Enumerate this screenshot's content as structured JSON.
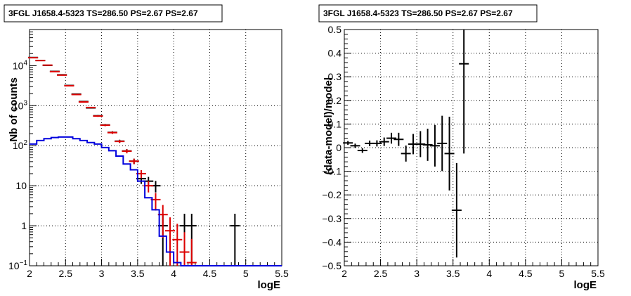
{
  "chart_data": [
    {
      "type": "scatter",
      "title": "3FGL J1658.4-5323 TS=286.50 PS=2.67 PS=2.67",
      "xlabel": "logE",
      "ylabel": "Nb of counts",
      "xlim": [
        2,
        5.5
      ],
      "ylim": [
        0.1,
        80000
      ],
      "yscale": "log",
      "grid": true,
      "x_ticks": [
        "2",
        "2.5",
        "3",
        "3.5",
        "4",
        "4.5",
        "5",
        "5.5"
      ],
      "y_ticks": [
        {
          "value": 0.1,
          "label": "10⁻¹",
          "base": "10",
          "exp": "−1"
        },
        {
          "value": 1,
          "label": "1"
        },
        {
          "value": 10,
          "label": "10"
        },
        {
          "value": 100,
          "label": "10²",
          "base": "10",
          "exp": "2"
        },
        {
          "value": 1000,
          "label": "10³",
          "base": "10",
          "exp": "3"
        },
        {
          "value": 10000,
          "label": "10⁴",
          "base": "10",
          "exp": "4"
        }
      ],
      "series": [
        {
          "role": "data",
          "color": "#000000",
          "points": [
            {
              "x": 2.05,
              "y": 16000,
              "e": 130
            },
            {
              "x": 2.15,
              "y": 13500,
              "e": 120
            },
            {
              "x": 2.25,
              "y": 10200,
              "e": 100
            },
            {
              "x": 2.35,
              "y": 7200,
              "e": 85
            },
            {
              "x": 2.45,
              "y": 5900,
              "e": 77
            },
            {
              "x": 2.55,
              "y": 3200,
              "e": 57
            },
            {
              "x": 2.65,
              "y": 1950,
              "e": 44
            },
            {
              "x": 2.75,
              "y": 1270,
              "e": 36
            },
            {
              "x": 2.85,
              "y": 880,
              "e": 30
            },
            {
              "x": 2.95,
              "y": 560,
              "e": 24
            },
            {
              "x": 3.05,
              "y": 330,
              "e": 18
            },
            {
              "x": 3.15,
              "y": 215,
              "e": 15
            },
            {
              "x": 3.25,
              "y": 130,
              "e": 11
            },
            {
              "x": 3.35,
              "y": 74,
              "e": 8.6
            },
            {
              "x": 3.45,
              "y": 41,
              "e": 6.4
            },
            {
              "x": 3.55,
              "y": 15,
              "e": 3.9
            },
            {
              "x": 3.65,
              "y": 13,
              "e": 3.6
            },
            {
              "x": 3.75,
              "y": 10,
              "e": 3.2
            },
            {
              "x": 3.85,
              "y": 1,
              "e": 1
            },
            {
              "x": 4.15,
              "y": 1,
              "e": 1
            },
            {
              "x": 4.25,
              "y": 1,
              "e": 1
            },
            {
              "x": 4.85,
              "y": 1,
              "e": 1
            }
          ]
        },
        {
          "role": "model",
          "color": "#dd0000",
          "points": [
            {
              "x": 2.05,
              "y": 15800,
              "e": 126
            },
            {
              "x": 2.15,
              "y": 13400,
              "e": 116
            },
            {
              "x": 2.25,
              "y": 10300,
              "e": 101
            },
            {
              "x": 2.35,
              "y": 7100,
              "e": 84
            },
            {
              "x": 2.45,
              "y": 5800,
              "e": 76
            },
            {
              "x": 2.55,
              "y": 3150,
              "e": 56
            },
            {
              "x": 2.65,
              "y": 1900,
              "e": 44
            },
            {
              "x": 2.75,
              "y": 1240,
              "e": 35
            },
            {
              "x": 2.85,
              "y": 900,
              "e": 30
            },
            {
              "x": 2.95,
              "y": 550,
              "e": 23
            },
            {
              "x": 3.05,
              "y": 325,
              "e": 18
            },
            {
              "x": 3.15,
              "y": 212,
              "e": 15
            },
            {
              "x": 3.25,
              "y": 128,
              "e": 11
            },
            {
              "x": 3.35,
              "y": 73,
              "e": 8.5
            },
            {
              "x": 3.45,
              "y": 41,
              "e": 6.4
            },
            {
              "x": 3.55,
              "y": 20,
              "e": 4.5
            },
            {
              "x": 3.65,
              "y": 10,
              "e": 3.2
            },
            {
              "x": 3.75,
              "y": 4.5,
              "e": 2.1
            },
            {
              "x": 3.85,
              "y": 1.9,
              "e": 1.4
            },
            {
              "x": 3.95,
              "y": 0.75,
              "e": 0.87
            },
            {
              "x": 4.05,
              "y": 0.45,
              "e": 0.67
            },
            {
              "x": 4.15,
              "y": 0.22,
              "e": 0.47
            },
            {
              "x": 4.25,
              "y": 0.12,
              "e": 0.35
            }
          ]
        },
        {
          "role": "component",
          "color": "#0000dd",
          "style": "step",
          "bins": [
            {
              "x0": 2.0,
              "x1": 2.1,
              "y": 110
            },
            {
              "x0": 2.1,
              "x1": 2.2,
              "y": 135
            },
            {
              "x0": 2.2,
              "x1": 2.3,
              "y": 150
            },
            {
              "x0": 2.3,
              "x1": 2.4,
              "y": 160
            },
            {
              "x0": 2.4,
              "x1": 2.5,
              "y": 165
            },
            {
              "x0": 2.5,
              "x1": 2.6,
              "y": 165
            },
            {
              "x0": 2.6,
              "x1": 2.7,
              "y": 150
            },
            {
              "x0": 2.7,
              "x1": 2.8,
              "y": 135
            },
            {
              "x0": 2.8,
              "x1": 2.9,
              "y": 120
            },
            {
              "x0": 2.9,
              "x1": 3.0,
              "y": 110
            },
            {
              "x0": 3.0,
              "x1": 3.1,
              "y": 90
            },
            {
              "x0": 3.1,
              "x1": 3.2,
              "y": 75
            },
            {
              "x0": 3.2,
              "x1": 3.3,
              "y": 55
            },
            {
              "x0": 3.3,
              "x1": 3.4,
              "y": 35
            },
            {
              "x0": 3.4,
              "x1": 3.5,
              "y": 25
            },
            {
              "x0": 3.5,
              "x1": 3.6,
              "y": 13
            },
            {
              "x0": 3.6,
              "x1": 3.7,
              "y": 5
            },
            {
              "x0": 3.7,
              "x1": 3.8,
              "y": 2.5
            },
            {
              "x0": 3.8,
              "x1": 3.9,
              "y": 0.55
            },
            {
              "x0": 3.9,
              "x1": 4.0,
              "y": 0.22
            },
            {
              "x0": 4.0,
              "x1": 4.1,
              "y": 0.12
            },
            {
              "x0": 4.1,
              "x1": 5.5,
              "y": 0.1
            }
          ]
        }
      ]
    },
    {
      "type": "scatter",
      "title": "3FGL J1658.4-5323 TS=286.50 PS=2.67 PS=2.67",
      "xlabel": "logE",
      "ylabel": "(data-model)/model",
      "xlim": [
        2,
        5.5
      ],
      "ylim": [
        -0.5,
        0.5
      ],
      "grid": true,
      "x_ticks": [
        "2",
        "2.5",
        "3",
        "3.5",
        "4",
        "4.5",
        "5",
        "5.5"
      ],
      "y_ticks": [
        "−0.5",
        "−0.4",
        "−0.3",
        "−0.2",
        "−0.1",
        "0",
        "0.1",
        "0.2",
        "0.3",
        "0.4",
        "0.5"
      ],
      "y_tick_values": [
        -0.5,
        -0.4,
        -0.3,
        -0.2,
        -0.1,
        0,
        0.1,
        0.2,
        0.3,
        0.4,
        0.5
      ],
      "series": [
        {
          "role": "residual",
          "color": "#000000",
          "points": [
            {
              "x": 2.05,
              "y": 0.02,
              "e": 0.008
            },
            {
              "x": 2.15,
              "y": 0.008,
              "e": 0.009
            },
            {
              "x": 2.25,
              "y": -0.012,
              "e": 0.01
            },
            {
              "x": 2.35,
              "y": 0.018,
              "e": 0.012
            },
            {
              "x": 2.45,
              "y": 0.018,
              "e": 0.013
            },
            {
              "x": 2.55,
              "y": 0.025,
              "e": 0.018
            },
            {
              "x": 2.65,
              "y": 0.04,
              "e": 0.023
            },
            {
              "x": 2.75,
              "y": 0.035,
              "e": 0.028
            },
            {
              "x": 2.85,
              "y": -0.025,
              "e": 0.034
            },
            {
              "x": 2.95,
              "y": 0.015,
              "e": 0.043
            },
            {
              "x": 3.05,
              "y": 0.015,
              "e": 0.055
            },
            {
              "x": 3.15,
              "y": 0.012,
              "e": 0.068
            },
            {
              "x": 3.25,
              "y": 0.008,
              "e": 0.088
            },
            {
              "x": 3.35,
              "y": 0.018,
              "e": 0.117
            },
            {
              "x": 3.45,
              "y": -0.025,
              "e": 0.156
            },
            {
              "x": 3.55,
              "y": -0.265,
              "e": 0.2
            },
            {
              "x": 3.65,
              "y": 0.355,
              "e": 0.38
            }
          ]
        }
      ]
    }
  ]
}
